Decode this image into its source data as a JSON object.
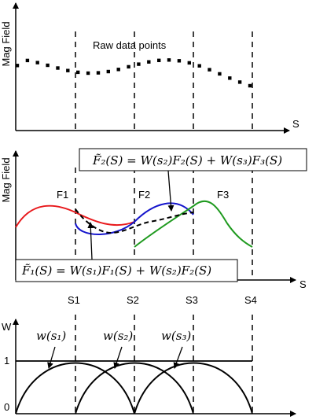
{
  "panel1": {
    "y_label": "Mag Field",
    "x_label": "S",
    "annotation": "Raw data points"
  },
  "panel2": {
    "y_label": "Mag Field",
    "x_label": "S",
    "curves": {
      "f1": {
        "label": "F1",
        "color": "#e8191c"
      },
      "f2": {
        "label": "F2",
        "color": "#1515cc"
      },
      "f3": {
        "label": "F3",
        "color": "#1f9a1f"
      }
    },
    "formula_top": "F̃₂(S) = W(s₂)F₂(S) + W(s₃)F₃(S)",
    "formula_bottom": "F̃₁(S) = W(s₁)F₁(S) + W(s₂)F₂(S)",
    "s_ticks": [
      "S1",
      "S2",
      "S3",
      "S4"
    ]
  },
  "panel3": {
    "y_label": "W",
    "y_ticks": [
      "1",
      "0"
    ],
    "weights": [
      "w(s₁)",
      "w(s₂)",
      "w(s₃)"
    ]
  },
  "style": {
    "axis_color": "#000000",
    "dashed_line_color": "#000000"
  }
}
